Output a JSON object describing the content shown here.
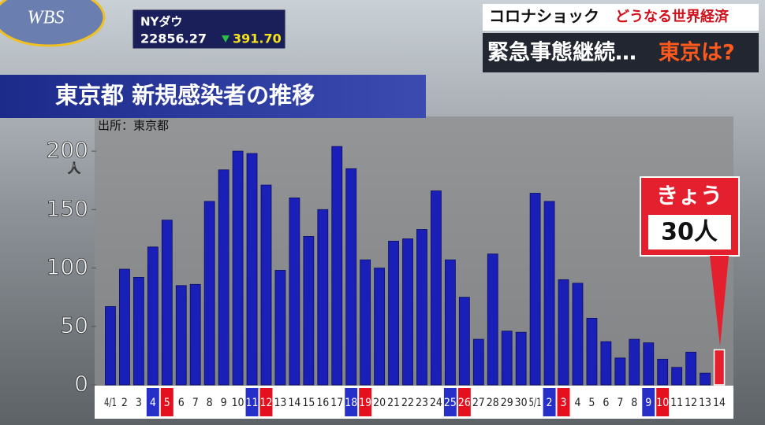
{
  "header": {
    "logo": "WBS",
    "ticker": {
      "name": "NYダウ",
      "index": "22856.27",
      "change": "391.70"
    },
    "topic": "コロナショック",
    "topic_sub": "どうなる世界経済",
    "headline": "緊急事態継続…",
    "headline_accent": "東京は?"
  },
  "chart_data": {
    "type": "bar",
    "title": "東京都 新規感染者の推移",
    "source": "出所：東京都",
    "y_unit": "人",
    "categories": [
      "4/1",
      "2",
      "3",
      "4",
      "5",
      "6",
      "7",
      "8",
      "9",
      "10",
      "11",
      "12",
      "13",
      "14",
      "15",
      "16",
      "17",
      "18",
      "19",
      "20",
      "21",
      "22",
      "23",
      "24",
      "25",
      "26",
      "27",
      "28",
      "29",
      "30",
      "5/1",
      "2",
      "3",
      "4",
      "5",
      "6",
      "7",
      "8",
      "9",
      "10",
      "11",
      "12",
      "13",
      "14"
    ],
    "category_label_colors": [
      "#ffffff",
      "#ffffff",
      "#ffffff",
      "#2630c8",
      "#e4101e",
      "#ffffff",
      "#ffffff",
      "#ffffff",
      "#ffffff",
      "#ffffff",
      "#2630c8",
      "#e4101e",
      "#ffffff",
      "#ffffff",
      "#ffffff",
      "#ffffff",
      "#ffffff",
      "#2630c8",
      "#e4101e",
      "#ffffff",
      "#ffffff",
      "#ffffff",
      "#ffffff",
      "#ffffff",
      "#2630c8",
      "#e4101e",
      "#ffffff",
      "#ffffff",
      "#ffffff",
      "#ffffff",
      "#ffffff",
      "#2630c8",
      "#e4101e",
      "#ffffff",
      "#ffffff",
      "#ffffff",
      "#ffffff",
      "#ffffff",
      "#2630c8",
      "#e4101e",
      "#ffffff",
      "#ffffff",
      "#ffffff",
      "#ffffff"
    ],
    "values": [
      67,
      99,
      92,
      118,
      141,
      85,
      86,
      157,
      184,
      200,
      198,
      171,
      98,
      160,
      127,
      150,
      204,
      185,
      107,
      100,
      123,
      125,
      133,
      166,
      107,
      75,
      39,
      112,
      46,
      45,
      164,
      157,
      90,
      87,
      57,
      37,
      23,
      39,
      36,
      22,
      15,
      28,
      10,
      30
    ],
    "value_labels": [
      null,
      null,
      null,
      null,
      null,
      null,
      null,
      null,
      null,
      null,
      null,
      null,
      null,
      null,
      null,
      null,
      null,
      null,
      null,
      null,
      null,
      null,
      null,
      null,
      null,
      null,
      null,
      null,
      null,
      null,
      null,
      null,
      null,
      null,
      null,
      null,
      null,
      null,
      null,
      null,
      null,
      null,
      null,
      "30人"
    ],
    "callout": "きょう",
    "color": "#1a1fb8",
    "highlight_color": "#e4202e",
    "highlight_index": 43,
    "ylim": [
      0,
      230
    ],
    "yticks": [
      0,
      50,
      100,
      150,
      200
    ],
    "grid": false
  }
}
